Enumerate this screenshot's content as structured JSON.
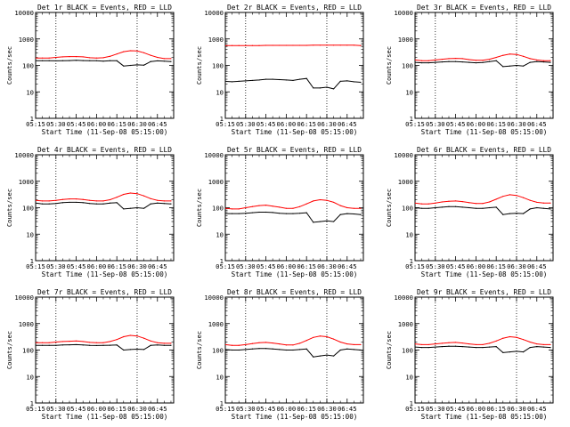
{
  "chart_data": [
    {
      "type": "line",
      "title": "Det 1r BLACK = Events, RED = LLD",
      "xlabel": "Start Time (11-Sep-08 05:15:00)",
      "ylabel": "Counts/sec",
      "yscale": "log",
      "ylim": [
        1,
        10000
      ],
      "x_ticks": [
        "05:15",
        "05:30",
        "05:45",
        "06:00",
        "06:15",
        "06:30",
        "06:45"
      ],
      "y_ticks": [
        "1",
        "10",
        "100",
        "1000",
        "10000"
      ],
      "x": [
        "05:15",
        "05:20",
        "05:25",
        "05:30",
        "05:35",
        "05:40",
        "05:45",
        "05:50",
        "05:55",
        "06:00",
        "06:05",
        "06:10",
        "06:15",
        "06:20",
        "06:25",
        "06:30",
        "06:35",
        "06:40",
        "06:45",
        "06:50",
        "06:55"
      ],
      "series": [
        {
          "color": "#000000",
          "values": [
            150,
            150,
            150,
            148,
            150,
            152,
            155,
            152,
            150,
            150,
            145,
            150,
            150,
            95,
            100,
            105,
            102,
            140,
            148,
            145,
            140
          ]
        },
        {
          "color": "#ff0000",
          "values": [
            190,
            190,
            190,
            200,
            210,
            215,
            215,
            210,
            195,
            190,
            195,
            220,
            270,
            330,
            360,
            350,
            300,
            240,
            200,
            180,
            180
          ]
        }
      ]
    },
    {
      "type": "line",
      "title": "Det 2r BLACK = Events, RED = LLD",
      "xlabel": "Start Time (11-Sep-08 05:15:00)",
      "ylabel": "Counts/sec",
      "yscale": "log",
      "ylim": [
        1,
        10000
      ],
      "x_ticks": [
        "05:15",
        "05:30",
        "05:45",
        "06:00",
        "06:15",
        "06:30",
        "06:45"
      ],
      "y_ticks": [
        "1",
        "10",
        "100",
        "1000",
        "10000"
      ],
      "x": [
        "05:15",
        "05:20",
        "05:25",
        "05:30",
        "05:35",
        "05:40",
        "05:45",
        "05:50",
        "05:55",
        "06:00",
        "06:05",
        "06:10",
        "06:15",
        "06:20",
        "06:25",
        "06:30",
        "06:35",
        "06:40",
        "06:45",
        "06:50",
        "06:55"
      ],
      "series": [
        {
          "color": "#000000",
          "values": [
            25,
            24,
            25,
            26,
            27,
            28,
            30,
            30,
            29,
            28,
            27,
            30,
            32,
            14,
            14,
            15,
            13,
            25,
            26,
            24,
            23
          ]
        },
        {
          "color": "#ff0000",
          "values": [
            560,
            560,
            560,
            560,
            560,
            560,
            570,
            570,
            570,
            570,
            570,
            570,
            570,
            580,
            580,
            580,
            580,
            580,
            580,
            580,
            560
          ]
        }
      ]
    },
    {
      "type": "line",
      "title": "Det 3r BLACK = Events, RED = LLD",
      "xlabel": "Start Time (11-Sep-08 05:15:00)",
      "ylabel": "Counts/sec",
      "yscale": "log",
      "ylim": [
        1,
        10000
      ],
      "x_ticks": [
        "05:15",
        "05:30",
        "05:45",
        "06:00",
        "06:15",
        "06:30",
        "06:45"
      ],
      "y_ticks": [
        "1",
        "10",
        "100",
        "1000",
        "10000"
      ],
      "x": [
        "05:15",
        "05:20",
        "05:25",
        "05:30",
        "05:35",
        "05:40",
        "05:45",
        "05:50",
        "05:55",
        "06:00",
        "06:05",
        "06:10",
        "06:15",
        "06:20",
        "06:25",
        "06:30",
        "06:35",
        "06:40",
        "06:45",
        "06:50",
        "06:55"
      ],
      "series": [
        {
          "color": "#000000",
          "values": [
            130,
            125,
            125,
            130,
            135,
            140,
            140,
            135,
            130,
            125,
            128,
            140,
            150,
            90,
            95,
            100,
            95,
            130,
            140,
            135,
            130
          ]
        },
        {
          "color": "#ff0000",
          "values": [
            160,
            150,
            150,
            160,
            170,
            180,
            185,
            180,
            165,
            155,
            155,
            170,
            200,
            240,
            270,
            260,
            220,
            180,
            160,
            150,
            150
          ]
        }
      ]
    },
    {
      "type": "line",
      "title": "Det 4r BLACK = Events, RED = LLD",
      "xlabel": "Start Time (11-Sep-08 05:15:00)",
      "ylabel": "Counts/sec",
      "yscale": "log",
      "ylim": [
        1,
        10000
      ],
      "x_ticks": [
        "05:15",
        "05:30",
        "05:45",
        "06:00",
        "06:15",
        "06:30",
        "06:45"
      ],
      "y_ticks": [
        "1",
        "10",
        "100",
        "1000",
        "10000"
      ],
      "x": [
        "05:15",
        "05:20",
        "05:25",
        "05:30",
        "05:35",
        "05:40",
        "05:45",
        "05:50",
        "05:55",
        "06:00",
        "06:05",
        "06:10",
        "06:15",
        "06:20",
        "06:25",
        "06:30",
        "06:35",
        "06:40",
        "06:45",
        "06:50",
        "06:55"
      ],
      "series": [
        {
          "color": "#000000",
          "values": [
            150,
            140,
            140,
            145,
            155,
            160,
            160,
            155,
            145,
            140,
            140,
            150,
            155,
            90,
            95,
            100,
            95,
            140,
            150,
            145,
            140
          ]
        },
        {
          "color": "#ff0000",
          "values": [
            190,
            180,
            180,
            190,
            205,
            215,
            215,
            205,
            190,
            180,
            180,
            200,
            250,
            320,
            360,
            340,
            280,
            220,
            190,
            180,
            180
          ]
        }
      ]
    },
    {
      "type": "line",
      "title": "Det 5r BLACK = Events, RED = LLD",
      "xlabel": "Start Time (11-Sep-08 05:15:00)",
      "ylabel": "Counts/sec",
      "yscale": "log",
      "ylim": [
        1,
        10000
      ],
      "x_ticks": [
        "05:15",
        "05:30",
        "05:45",
        "06:00",
        "06:15",
        "06:30",
        "06:45"
      ],
      "y_ticks": [
        "1",
        "10",
        "100",
        "1000",
        "10000"
      ],
      "x": [
        "05:15",
        "05:20",
        "05:25",
        "05:30",
        "05:35",
        "05:40",
        "05:45",
        "05:50",
        "05:55",
        "06:00",
        "06:05",
        "06:10",
        "06:15",
        "06:20",
        "06:25",
        "06:30",
        "06:35",
        "06:40",
        "06:45",
        "06:50",
        "06:55"
      ],
      "series": [
        {
          "color": "#000000",
          "values": [
            60,
            60,
            60,
            62,
            65,
            68,
            68,
            66,
            62,
            60,
            60,
            62,
            65,
            28,
            30,
            32,
            30,
            55,
            60,
            58,
            55
          ]
        },
        {
          "color": "#ff0000",
          "values": [
            95,
            90,
            90,
            100,
            110,
            120,
            125,
            115,
            105,
            95,
            95,
            110,
            140,
            180,
            200,
            190,
            160,
            120,
            100,
            95,
            95
          ]
        }
      ]
    },
    {
      "type": "line",
      "title": "Det 6r BLACK = Events, RED = LLD",
      "xlabel": "Start Time (11-Sep-08 05:15:00)",
      "ylabel": "Counts/sec",
      "yscale": "log",
      "ylim": [
        1,
        10000
      ],
      "x_ticks": [
        "05:15",
        "05:30",
        "05:45",
        "06:00",
        "06:15",
        "06:30",
        "06:45"
      ],
      "y_ticks": [
        "1",
        "10",
        "100",
        "1000",
        "10000"
      ],
      "x": [
        "05:15",
        "05:20",
        "05:25",
        "05:30",
        "05:35",
        "05:40",
        "05:45",
        "05:50",
        "05:55",
        "06:00",
        "06:05",
        "06:10",
        "06:15",
        "06:20",
        "06:25",
        "06:30",
        "06:35",
        "06:40",
        "06:45",
        "06:50",
        "06:55"
      ],
      "series": [
        {
          "color": "#000000",
          "values": [
            100,
            95,
            95,
            100,
            105,
            110,
            110,
            105,
            100,
            95,
            95,
            100,
            105,
            55,
            60,
            62,
            60,
            90,
            100,
            95,
            90
          ]
        },
        {
          "color": "#ff0000",
          "values": [
            150,
            140,
            140,
            150,
            165,
            175,
            180,
            170,
            155,
            145,
            145,
            165,
            210,
            270,
            310,
            290,
            240,
            190,
            160,
            150,
            150
          ]
        }
      ]
    },
    {
      "type": "line",
      "title": "Det 7r BLACK = Events, RED = LLD",
      "xlabel": "Start Time (11-Sep-08 05:15:00)",
      "ylabel": "Counts/sec",
      "yscale": "log",
      "ylim": [
        1,
        10000
      ],
      "x_ticks": [
        "05:15",
        "05:30",
        "05:45",
        "06:00",
        "06:15",
        "06:30",
        "06:45"
      ],
      "y_ticks": [
        "1",
        "10",
        "100",
        "1000",
        "10000"
      ],
      "x": [
        "05:15",
        "05:20",
        "05:25",
        "05:30",
        "05:35",
        "05:40",
        "05:45",
        "05:50",
        "05:55",
        "06:00",
        "06:05",
        "06:10",
        "06:15",
        "06:20",
        "06:25",
        "06:30",
        "06:35",
        "06:40",
        "06:45",
        "06:50",
        "06:55"
      ],
      "series": [
        {
          "color": "#000000",
          "values": [
            150,
            150,
            150,
            150,
            155,
            158,
            160,
            155,
            150,
            148,
            150,
            152,
            155,
            100,
            105,
            108,
            105,
            150,
            155,
            150,
            150
          ]
        },
        {
          "color": "#ff0000",
          "values": [
            190,
            190,
            190,
            200,
            210,
            215,
            220,
            210,
            195,
            190,
            190,
            210,
            250,
            320,
            360,
            340,
            280,
            220,
            190,
            180,
            180
          ]
        }
      ]
    },
    {
      "type": "line",
      "title": "Det 8r BLACK = Events, RED = LLD",
      "xlabel": "Start Time (11-Sep-08 05:15:00)",
      "ylabel": "Counts/sec",
      "yscale": "log",
      "ylim": [
        1,
        10000
      ],
      "x_ticks": [
        "05:15",
        "05:30",
        "05:45",
        "06:00",
        "06:15",
        "06:30",
        "06:45"
      ],
      "y_ticks": [
        "1",
        "10",
        "100",
        "1000",
        "10000"
      ],
      "x": [
        "05:15",
        "05:20",
        "05:25",
        "05:30",
        "05:35",
        "05:40",
        "05:45",
        "05:50",
        "05:55",
        "06:00",
        "06:05",
        "06:10",
        "06:15",
        "06:20",
        "06:25",
        "06:30",
        "06:35",
        "06:40",
        "06:45",
        "06:50",
        "06:55"
      ],
      "series": [
        {
          "color": "#000000",
          "values": [
            105,
            100,
            100,
            105,
            110,
            115,
            115,
            110,
            105,
            100,
            100,
            105,
            110,
            55,
            60,
            65,
            60,
            100,
            110,
            105,
            100
          ]
        },
        {
          "color": "#ff0000",
          "values": [
            160,
            150,
            150,
            160,
            175,
            190,
            195,
            185,
            170,
            155,
            155,
            180,
            230,
            300,
            340,
            320,
            260,
            200,
            170,
            160,
            160
          ]
        }
      ]
    },
    {
      "type": "line",
      "title": "Det 9r BLACK = Events, RED = LLD",
      "xlabel": "Start Time (11-Sep-08 05:15:00)",
      "ylabel": "Counts/sec",
      "yscale": "log",
      "ylim": [
        1,
        10000
      ],
      "x_ticks": [
        "05:15",
        "05:30",
        "05:45",
        "06:00",
        "06:15",
        "06:30",
        "06:45"
      ],
      "y_ticks": [
        "1",
        "10",
        "100",
        "1000",
        "10000"
      ],
      "x": [
        "05:15",
        "05:20",
        "05:25",
        "05:30",
        "05:35",
        "05:40",
        "05:45",
        "05:50",
        "05:55",
        "06:00",
        "06:05",
        "06:10",
        "06:15",
        "06:20",
        "06:25",
        "06:30",
        "06:35",
        "06:40",
        "06:45",
        "06:50",
        "06:55"
      ],
      "series": [
        {
          "color": "#000000",
          "values": [
            130,
            125,
            125,
            130,
            135,
            140,
            140,
            135,
            130,
            125,
            125,
            130,
            135,
            80,
            85,
            90,
            85,
            125,
            135,
            130,
            125
          ]
        },
        {
          "color": "#ff0000",
          "values": [
            170,
            160,
            160,
            170,
            180,
            190,
            195,
            185,
            170,
            160,
            160,
            180,
            220,
            280,
            320,
            300,
            250,
            200,
            170,
            160,
            160
          ]
        }
      ]
    }
  ]
}
